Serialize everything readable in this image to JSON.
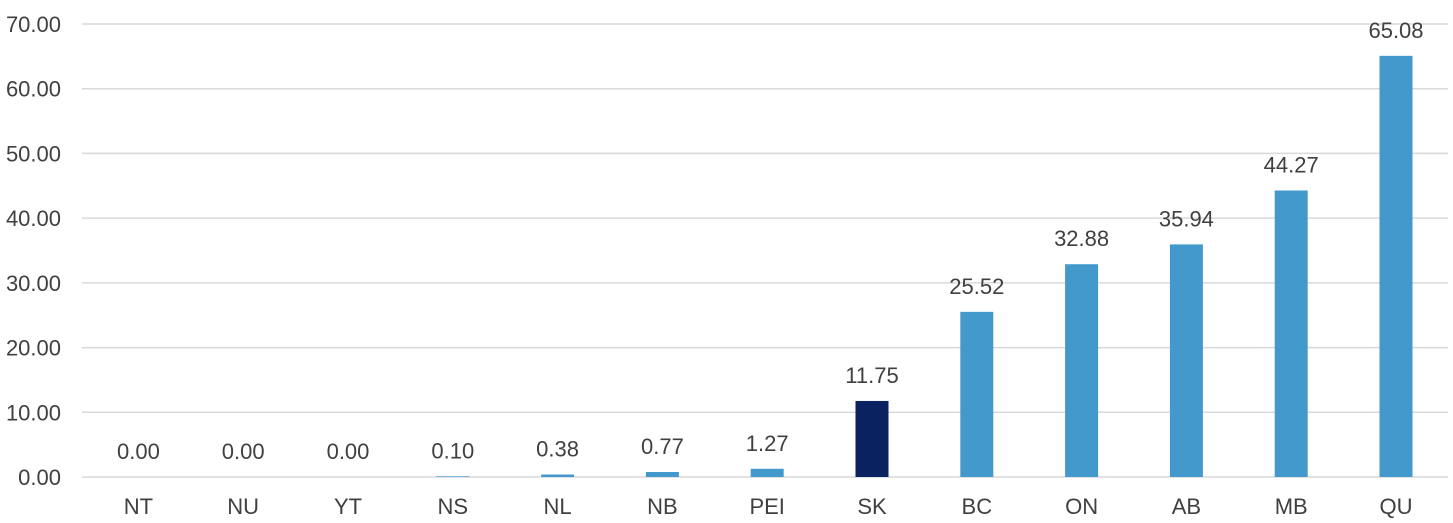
{
  "chart_data": {
    "type": "bar",
    "title": "",
    "xlabel": "",
    "ylabel": "",
    "ylim": [
      0,
      70
    ],
    "yticks": [
      0,
      10,
      20,
      30,
      40,
      50,
      60,
      70
    ],
    "ytick_labels": [
      "0.00",
      "10.00",
      "20.00",
      "30.00",
      "40.00",
      "50.00",
      "60.00",
      "70.00"
    ],
    "grid": true,
    "legend": "none",
    "categories": [
      "NT",
      "NU",
      "YT",
      "NS",
      "NL",
      "NB",
      "PEI",
      "SK",
      "BC",
      "ON",
      "AB",
      "MB",
      "QU"
    ],
    "values": [
      0.0,
      0.0,
      0.0,
      0.1,
      0.38,
      0.77,
      1.27,
      11.75,
      25.52,
      32.88,
      35.94,
      44.27,
      65.08
    ],
    "data_labels": [
      "0.00",
      "0.00",
      "0.00",
      "0.10",
      "0.38",
      "0.77",
      "1.27",
      "11.75",
      "25.52",
      "32.88",
      "35.94",
      "44.27",
      "65.08"
    ],
    "highlight_category": "SK",
    "colors": {
      "bar": "#4499cc",
      "highlight": "#0b2260",
      "grid": "#d9d9d9",
      "text": "#404040"
    }
  }
}
